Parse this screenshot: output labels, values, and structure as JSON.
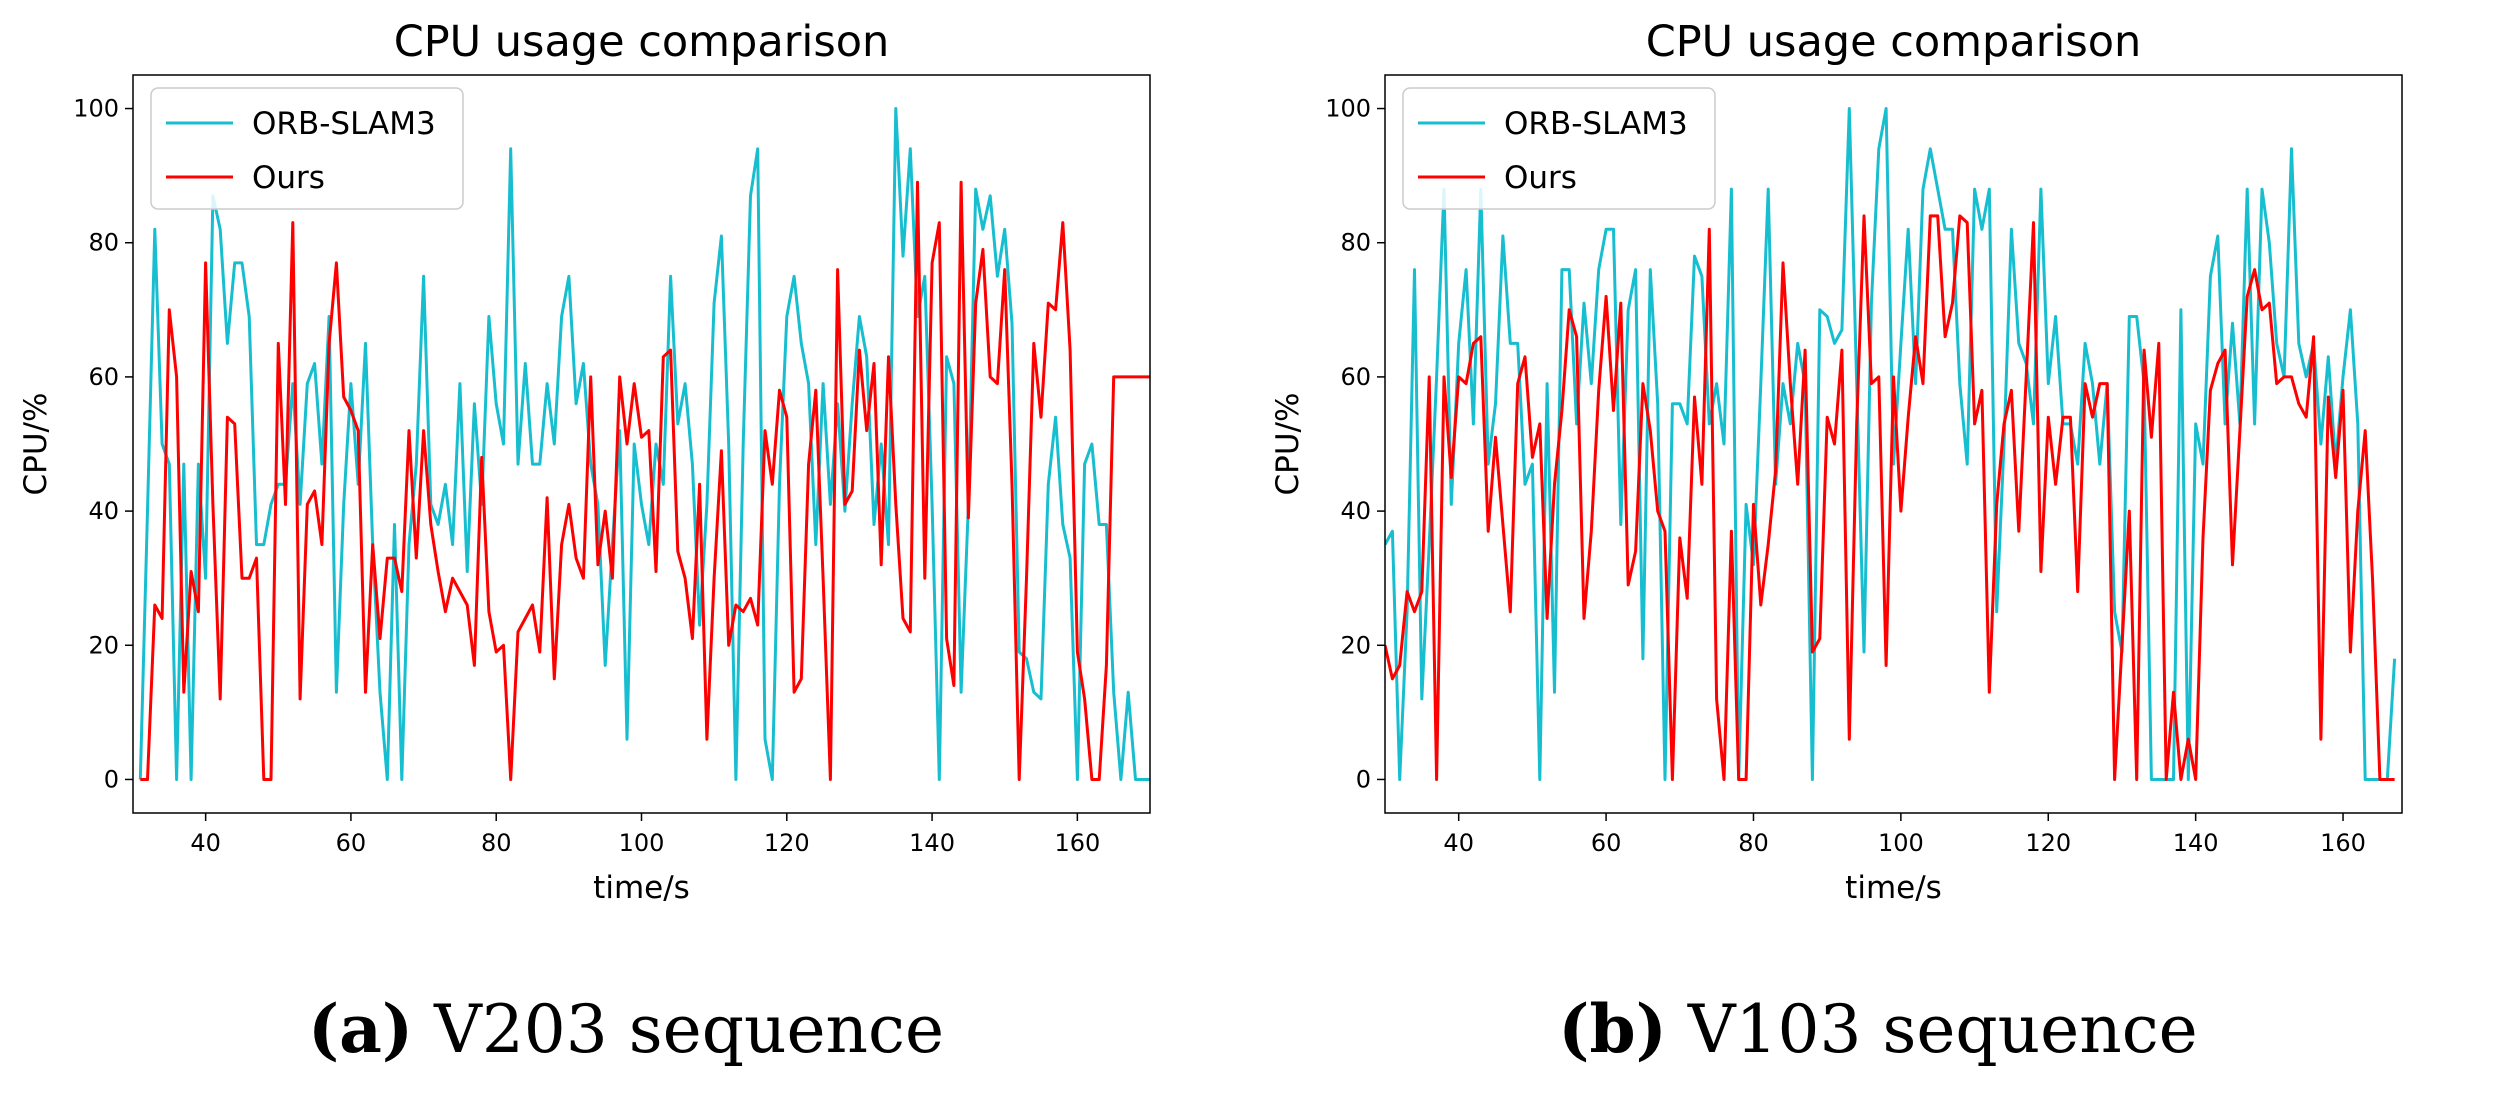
{
  "colors": {
    "orb": "#17becf",
    "ours": "#ff0000",
    "axis": "#000000"
  },
  "chart_data": [
    {
      "type": "line",
      "title": "CPU usage comparison",
      "xlabel": "time/s",
      "ylabel": "CPU/%",
      "xlim": [
        30,
        170
      ],
      "ylim": [
        -5,
        105
      ],
      "xticks": [
        40,
        60,
        80,
        100,
        120,
        140,
        160
      ],
      "yticks": [
        0,
        20,
        40,
        60,
        80,
        100
      ],
      "legend_position": "top-left",
      "caption_letter": "(a)",
      "caption_text": " V203 sequence",
      "series": [
        {
          "name": "ORB-SLAM3",
          "color": "#17becf",
          "x": [
            31,
            32,
            33,
            34,
            35,
            36,
            37,
            38,
            39,
            40,
            41,
            42,
            43,
            44,
            45,
            46,
            47,
            48,
            49,
            50,
            51,
            52,
            53,
            54,
            55,
            56,
            57,
            58,
            59,
            60,
            61,
            62,
            63,
            64,
            65,
            66,
            67,
            68,
            69,
            70,
            71,
            72,
            73,
            74,
            75,
            76,
            77,
            78,
            79,
            80,
            81,
            82,
            83,
            84,
            85,
            86,
            87,
            88,
            89,
            90,
            91,
            92,
            93,
            94,
            95,
            96,
            97,
            98,
            99,
            100,
            101,
            102,
            103,
            104,
            105,
            106,
            107,
            108,
            109,
            110,
            111,
            112,
            113,
            114,
            115,
            116,
            117,
            118,
            119,
            120,
            121,
            122,
            123,
            124,
            125,
            126,
            127,
            128,
            129,
            130,
            131,
            132,
            133,
            134,
            135,
            136,
            137,
            138,
            139,
            140,
            141,
            142,
            143,
            144,
            145,
            146,
            147,
            148,
            149,
            150,
            151,
            152,
            153,
            154,
            155,
            156,
            157,
            158,
            159,
            160,
            161,
            162,
            163,
            164,
            165,
            166,
            167,
            168,
            169,
            170
          ],
          "y": [
            0,
            40,
            82,
            50,
            47,
            0,
            47,
            0,
            47,
            30,
            87,
            82,
            65,
            77,
            77,
            69,
            35,
            35,
            41,
            44,
            44,
            59,
            41,
            59,
            62,
            47,
            69,
            13,
            41,
            59,
            44,
            65,
            35,
            13,
            0,
            38,
            0,
            35,
            47,
            75,
            41,
            38,
            44,
            35,
            59,
            31,
            56,
            41,
            69,
            56,
            50,
            94,
            47,
            62,
            47,
            47,
            59,
            50,
            69,
            75,
            56,
            62,
            47,
            41,
            17,
            35,
            52,
            6,
            50,
            41,
            35,
            50,
            44,
            75,
            53,
            59,
            47,
            23,
            41,
            71,
            81,
            50,
            0,
            50,
            87,
            94,
            6,
            0,
            44,
            69,
            75,
            65,
            59,
            35,
            59,
            41,
            56,
            40,
            56,
            69,
            63,
            38,
            50,
            35,
            100,
            78,
            94,
            69,
            75,
            41,
            0,
            63,
            59,
            13,
            41,
            88,
            82,
            87,
            75,
            82,
            68,
            19,
            18,
            13,
            12,
            44,
            54,
            38,
            33,
            0,
            47,
            50,
            38,
            38,
            13,
            0,
            13,
            0,
            0,
            0
          ]
        },
        {
          "name": "Ours",
          "color": "#ff0000",
          "x": [
            31,
            32,
            33,
            34,
            35,
            36,
            37,
            38,
            39,
            40,
            41,
            42,
            43,
            44,
            45,
            46,
            47,
            48,
            49,
            50,
            51,
            52,
            53,
            54,
            55,
            56,
            57,
            58,
            59,
            60,
            61,
            62,
            63,
            64,
            65,
            66,
            67,
            68,
            69,
            70,
            71,
            72,
            73,
            74,
            75,
            76,
            77,
            78,
            79,
            80,
            81,
            82,
            83,
            84,
            85,
            86,
            87,
            88,
            89,
            90,
            91,
            92,
            93,
            94,
            95,
            96,
            97,
            98,
            99,
            100,
            101,
            102,
            103,
            104,
            105,
            106,
            107,
            108,
            109,
            110,
            111,
            112,
            113,
            114,
            115,
            116,
            117,
            118,
            119,
            120,
            121,
            122,
            123,
            124,
            125,
            126,
            127,
            128,
            129,
            130,
            131,
            132,
            133,
            134,
            135,
            136,
            137,
            138,
            139,
            140,
            141,
            142,
            143,
            144,
            145,
            146,
            147,
            148,
            149,
            150,
            151,
            152,
            153,
            154,
            155,
            156,
            157,
            158,
            159,
            160,
            161,
            162,
            163,
            164,
            165,
            166,
            167,
            168,
            169,
            170
          ],
          "y": [
            0,
            0,
            26,
            24,
            70,
            60,
            13,
            31,
            25,
            77,
            41,
            12,
            54,
            53,
            30,
            30,
            33,
            0,
            0,
            65,
            41,
            83,
            12,
            41,
            43,
            35,
            65,
            77,
            57,
            55,
            52,
            13,
            35,
            21,
            33,
            33,
            28,
            52,
            33,
            52,
            38,
            31,
            25,
            30,
            28,
            26,
            17,
            48,
            25,
            19,
            20,
            0,
            22,
            24,
            26,
            19,
            42,
            15,
            35,
            41,
            33,
            30,
            60,
            32,
            40,
            30,
            60,
            50,
            59,
            51,
            52,
            31,
            63,
            64,
            34,
            30,
            21,
            44,
            6,
            30,
            49,
            20,
            26,
            25,
            27,
            23,
            52,
            44,
            58,
            54,
            13,
            15,
            47,
            58,
            30,
            0,
            76,
            41,
            43,
            64,
            52,
            62,
            32,
            63,
            41,
            24,
            22,
            89,
            30,
            77,
            83,
            21,
            14,
            89,
            39,
            71,
            79,
            60,
            59,
            76,
            44,
            0,
            30,
            65,
            54,
            71,
            70,
            83,
            64,
            19,
            12,
            0,
            0,
            17,
            60,
            60,
            60,
            60,
            60,
            60
          ]
        }
      ]
    },
    {
      "type": "line",
      "title": "CPU usage comparison",
      "xlabel": "time/s",
      "ylabel": "CPU/%",
      "xlim": [
        30,
        168
      ],
      "ylim": [
        -5,
        105
      ],
      "xticks": [
        40,
        60,
        80,
        100,
        120,
        140,
        160
      ],
      "yticks": [
        0,
        20,
        40,
        60,
        80,
        100
      ],
      "legend_position": "top-left",
      "caption_letter": "(b)",
      "caption_text": " V103 sequence",
      "series": [
        {
          "name": "ORB-SLAM3",
          "color": "#17becf",
          "x": [
            30,
            31,
            32,
            33,
            34,
            35,
            36,
            37,
            38,
            39,
            40,
            41,
            42,
            43,
            44,
            45,
            46,
            47,
            48,
            49,
            50,
            51,
            52,
            53,
            54,
            55,
            56,
            57,
            58,
            59,
            60,
            61,
            62,
            63,
            64,
            65,
            66,
            67,
            68,
            69,
            70,
            71,
            72,
            73,
            74,
            75,
            76,
            77,
            78,
            79,
            80,
            81,
            82,
            83,
            84,
            85,
            86,
            87,
            88,
            89,
            90,
            91,
            92,
            93,
            94,
            95,
            96,
            97,
            98,
            99,
            100,
            101,
            102,
            103,
            104,
            105,
            106,
            107,
            108,
            109,
            110,
            111,
            112,
            113,
            114,
            115,
            116,
            117,
            118,
            119,
            120,
            121,
            122,
            123,
            124,
            125,
            126,
            127,
            128,
            129,
            130,
            131,
            132,
            133,
            134,
            135,
            136,
            137,
            138,
            139,
            140,
            141,
            142,
            143,
            144,
            145,
            146,
            147,
            148,
            149,
            150,
            151,
            152,
            153,
            154,
            155,
            156,
            157,
            158,
            159,
            160,
            161,
            162,
            163,
            164,
            165,
            166,
            167
          ],
          "y": [
            35,
            37,
            0,
            25,
            76,
            12,
            35,
            60,
            88,
            41,
            65,
            76,
            53,
            88,
            47,
            56,
            81,
            65,
            65,
            44,
            47,
            0,
            59,
            13,
            76,
            76,
            53,
            71,
            59,
            76,
            82,
            82,
            38,
            70,
            76,
            18,
            76,
            56,
            0,
            56,
            56,
            53,
            78,
            75,
            53,
            59,
            50,
            88,
            0,
            41,
            32,
            59,
            88,
            44,
            59,
            53,
            65,
            59,
            0,
            70,
            69,
            65,
            67,
            100,
            59,
            19,
            71,
            94,
            100,
            47,
            65,
            82,
            59,
            88,
            94,
            88,
            82,
            82,
            59,
            47,
            88,
            82,
            88,
            25,
            50,
            82,
            65,
            62,
            53,
            88,
            59,
            69,
            53,
            53,
            47,
            65,
            59,
            47,
            59,
            25,
            19,
            69,
            69,
            59,
            0,
            0,
            0,
            0,
            70,
            0,
            53,
            47,
            75,
            81,
            53,
            68,
            53,
            88,
            53,
            88,
            80,
            65,
            60,
            94,
            65,
            60,
            65,
            50,
            63,
            47,
            60,
            70,
            53,
            0,
            0,
            0,
            0,
            18
          ]
        },
        {
          "name": "Ours",
          "color": "#ff0000",
          "x": [
            30,
            31,
            32,
            33,
            34,
            35,
            36,
            37,
            38,
            39,
            40,
            41,
            42,
            43,
            44,
            45,
            46,
            47,
            48,
            49,
            50,
            51,
            52,
            53,
            54,
            55,
            56,
            57,
            58,
            59,
            60,
            61,
            62,
            63,
            64,
            65,
            66,
            67,
            68,
            69,
            70,
            71,
            72,
            73,
            74,
            75,
            76,
            77,
            78,
            79,
            80,
            81,
            82,
            83,
            84,
            85,
            86,
            87,
            88,
            89,
            90,
            91,
            92,
            93,
            94,
            95,
            96,
            97,
            98,
            99,
            100,
            101,
            102,
            103,
            104,
            105,
            106,
            107,
            108,
            109,
            110,
            111,
            112,
            113,
            114,
            115,
            116,
            117,
            118,
            119,
            120,
            121,
            122,
            123,
            124,
            125,
            126,
            127,
            128,
            129,
            130,
            131,
            132,
            133,
            134,
            135,
            136,
            137,
            138,
            139,
            140,
            141,
            142,
            143,
            144,
            145,
            146,
            147,
            148,
            149,
            150,
            151,
            152,
            153,
            154,
            155,
            156,
            157,
            158,
            159,
            160,
            161,
            162,
            163,
            164,
            165,
            166,
            167
          ],
          "y": [
            20,
            15,
            17,
            28,
            25,
            28,
            60,
            0,
            60,
            45,
            60,
            59,
            65,
            66,
            37,
            51,
            38,
            25,
            59,
            63,
            48,
            53,
            24,
            44,
            55,
            70,
            66,
            24,
            37,
            58,
            72,
            55,
            71,
            29,
            34,
            59,
            52,
            40,
            37,
            0,
            36,
            27,
            57,
            44,
            82,
            12,
            0,
            37,
            0,
            0,
            41,
            26,
            35,
            46,
            77,
            59,
            44,
            64,
            19,
            21,
            54,
            50,
            64,
            6,
            53,
            84,
            59,
            60,
            17,
            60,
            40,
            54,
            66,
            59,
            84,
            84,
            66,
            71,
            84,
            83,
            53,
            58,
            13,
            41,
            53,
            58,
            37,
            60,
            83,
            31,
            54,
            44,
            54,
            54,
            28,
            59,
            54,
            59,
            59,
            0,
            20,
            40,
            0,
            64,
            51,
            65,
            0,
            13,
            0,
            6,
            0,
            36,
            58,
            62,
            64,
            32,
            52,
            72,
            76,
            70,
            71,
            59,
            60,
            60,
            56,
            54,
            66,
            6,
            57,
            45,
            58,
            19,
            40,
            52,
            30,
            0,
            0,
            0
          ]
        }
      ]
    }
  ]
}
